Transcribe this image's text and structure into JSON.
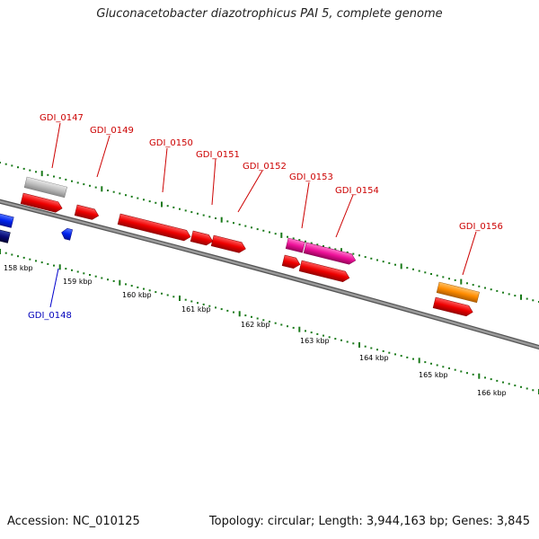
{
  "title": "Gluconacetobacter diazotrophicus PAI 5, complete genome",
  "accession_label": "Accession: NC_010125",
  "topology_label": "Topology: circular; Length: 3,944,163 bp; Genes: 3,845",
  "colors": {
    "backbone": "#808080",
    "tick": "#1a7a1a",
    "label_red": "#cc0000",
    "label_blue": "#0000bb",
    "leader_red": "#cc0000",
    "leader_blue": "#0000cc"
  },
  "scale": {
    "ticks": [
      "158 kbp",
      "159 kbp",
      "160 kbp",
      "161 kbp",
      "162 kbp",
      "163 kbp",
      "164 kbp",
      "165 kbp",
      "166 kbp"
    ]
  },
  "gene_labels": [
    {
      "name": "GDI_0147",
      "color": "red"
    },
    {
      "name": "GDI_0149",
      "color": "red"
    },
    {
      "name": "GDI_0150",
      "color": "red"
    },
    {
      "name": "GDI_0151",
      "color": "red"
    },
    {
      "name": "GDI_0152",
      "color": "red"
    },
    {
      "name": "GDI_0153",
      "color": "red"
    },
    {
      "name": "GDI_0154",
      "color": "red"
    },
    {
      "name": "GDI_0156",
      "color": "red"
    },
    {
      "name": "GDI_0148",
      "color": "blue"
    }
  ]
}
